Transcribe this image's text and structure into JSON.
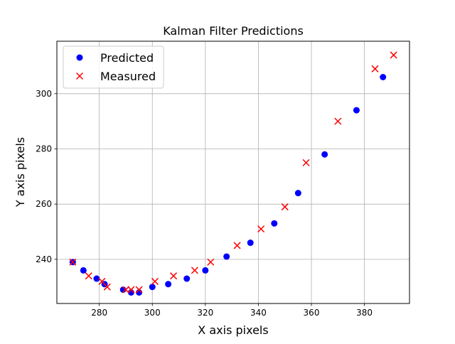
{
  "chart_data": {
    "type": "scatter",
    "title": "Kalman Filter Predictions",
    "xlabel": "X axis pixels",
    "ylabel": "Y axis pixels",
    "xlim": [
      264,
      397
    ],
    "ylim": [
      224,
      319
    ],
    "xticks": [
      280,
      300,
      320,
      340,
      360,
      380
    ],
    "yticks": [
      240,
      260,
      280,
      300
    ],
    "grid": true,
    "legend_position": "upper-left",
    "series": [
      {
        "name": "Predicted",
        "marker": "circle",
        "color": "#0000ff",
        "x": [
          270,
          274,
          279,
          282,
          289,
          292,
          295,
          300,
          306,
          313,
          320,
          328,
          337,
          346,
          355,
          365,
          377,
          387
        ],
        "y": [
          239,
          236,
          233,
          231,
          229,
          228,
          228,
          230,
          231,
          233,
          236,
          241,
          246,
          253,
          264,
          278,
          294,
          306
        ]
      },
      {
        "name": "Measured",
        "marker": "x",
        "color": "#ff0000",
        "x": [
          270,
          276,
          281,
          283,
          290,
          292,
          295,
          301,
          308,
          316,
          322,
          332,
          341,
          350,
          358,
          370,
          384,
          391
        ],
        "y": [
          239,
          234,
          232,
          230,
          229,
          229,
          229,
          232,
          234,
          236,
          239,
          245,
          251,
          259,
          275,
          290,
          309,
          314
        ]
      }
    ]
  }
}
